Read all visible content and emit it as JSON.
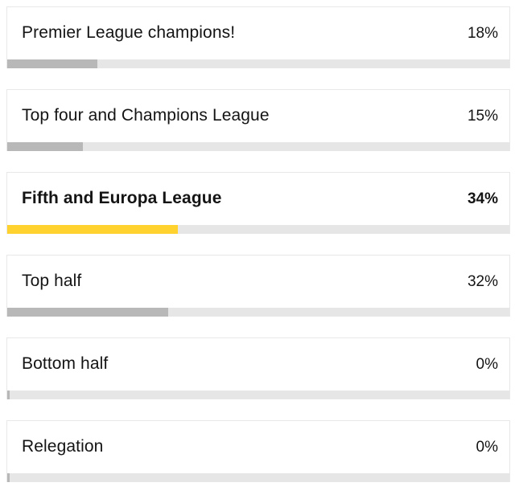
{
  "poll": {
    "options": [
      {
        "label": "Premier League champions!",
        "percent_text": "18%",
        "value": 0.18,
        "selected": false
      },
      {
        "label": "Top four and Champions League",
        "percent_text": "15%",
        "value": 0.15,
        "selected": false
      },
      {
        "label": "Fifth and Europa League",
        "percent_text": "34%",
        "value": 0.34,
        "selected": true
      },
      {
        "label": "Top half",
        "percent_text": "32%",
        "value": 0.32,
        "selected": false
      },
      {
        "label": "Bottom half",
        "percent_text": "0%",
        "value": 0.0,
        "selected": false
      },
      {
        "label": "Relegation",
        "percent_text": "0%",
        "value": 0.0,
        "selected": false
      }
    ]
  },
  "colors": {
    "selected_fill": "#ffd230",
    "default_fill": "#b8b8b8",
    "track": "#e6e6e6"
  }
}
